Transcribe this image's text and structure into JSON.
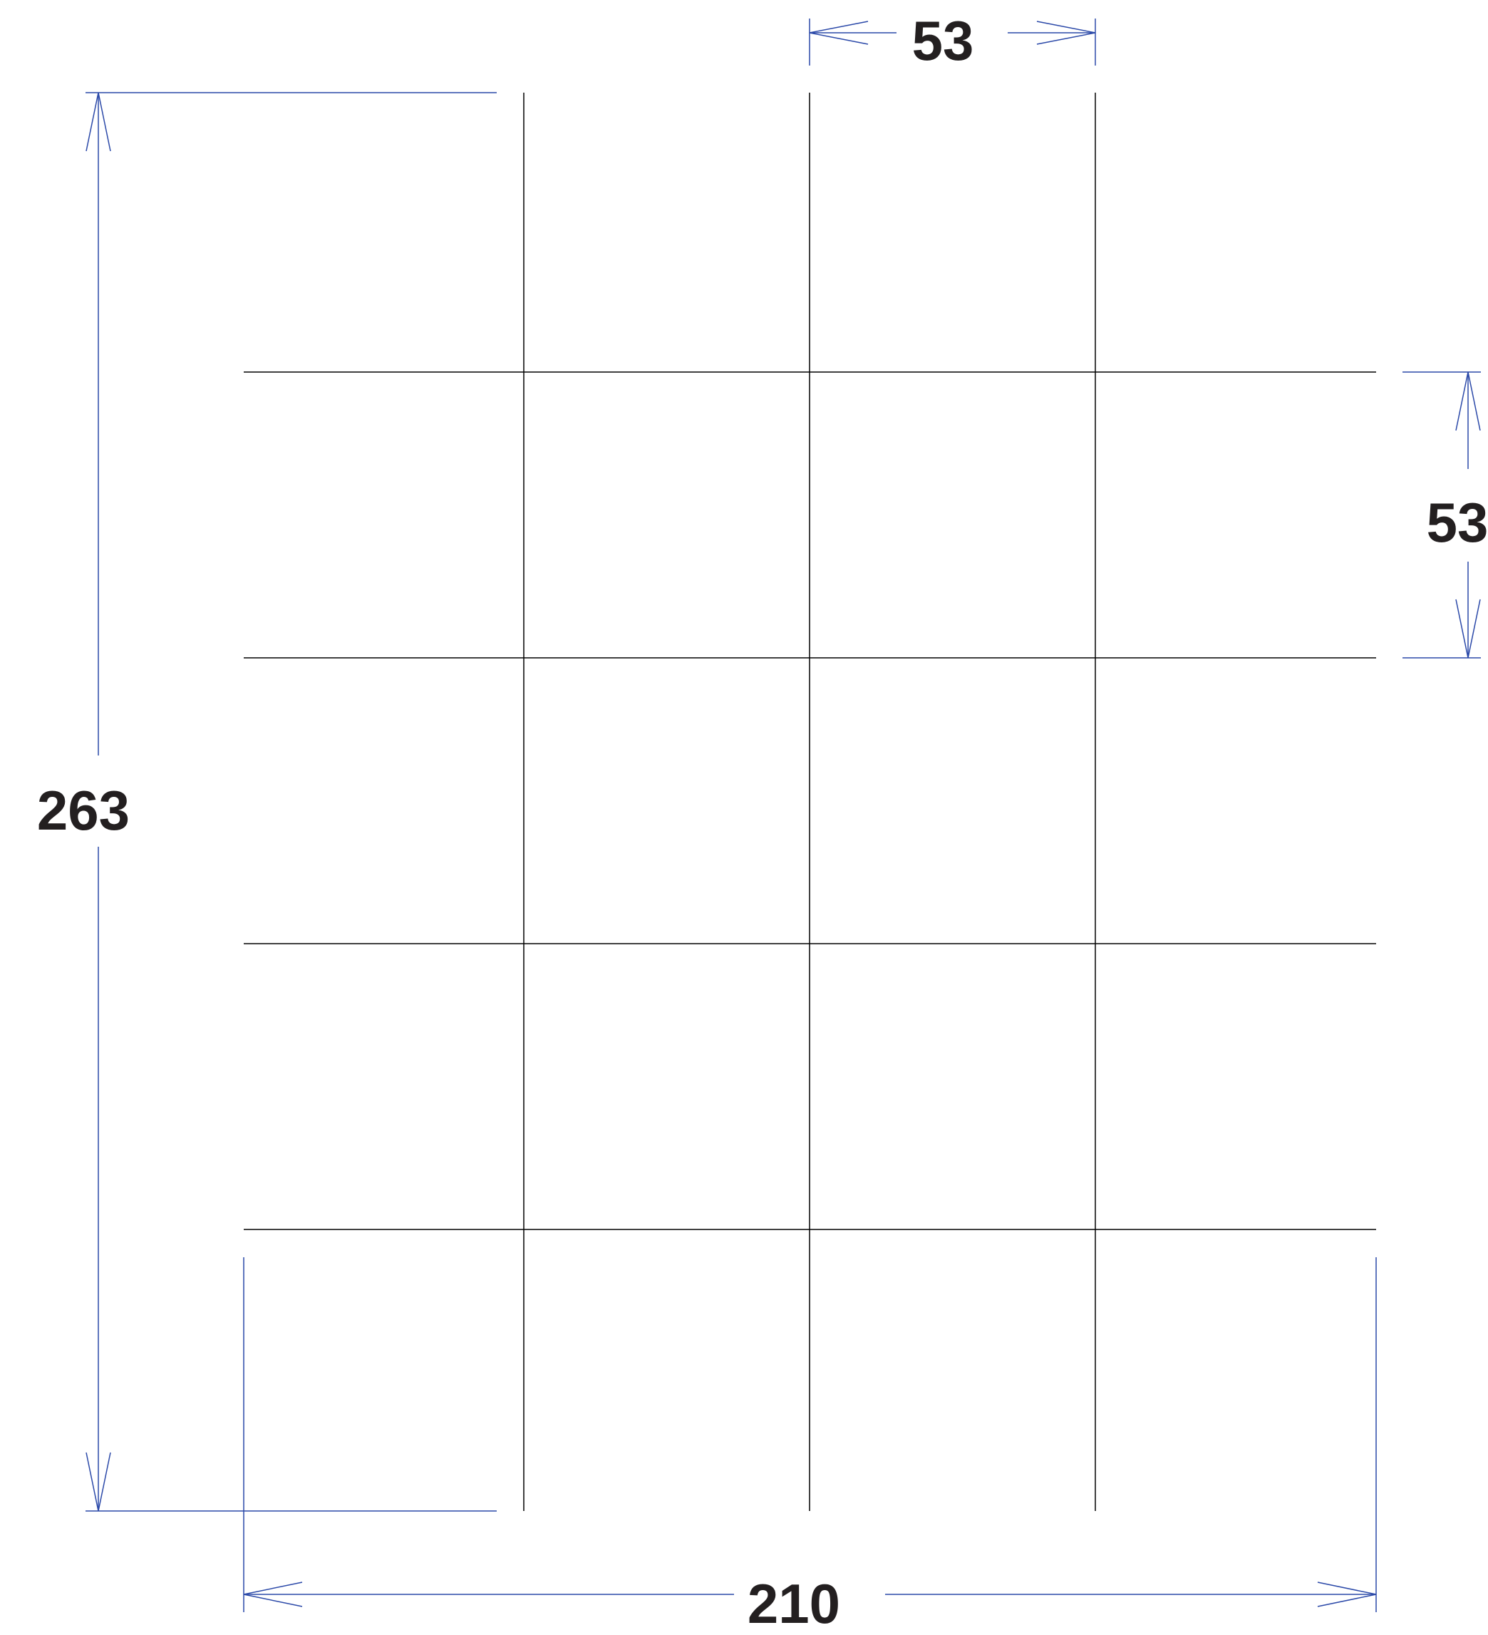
{
  "diagram": {
    "grid": {
      "columns": 4,
      "rows": 5,
      "line_color": "#000000"
    },
    "dimensions": {
      "cell_width": {
        "label": "53"
      },
      "cell_height": {
        "label": "53"
      },
      "total_height": {
        "label": "263"
      },
      "total_width": {
        "label": "210"
      },
      "line_color": "#2a48a8",
      "label_color": "#231f20"
    }
  }
}
